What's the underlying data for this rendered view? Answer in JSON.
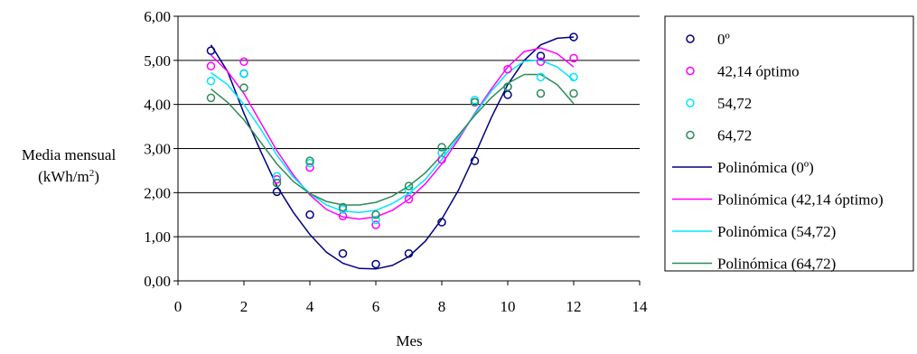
{
  "chart_data": {
    "type": "scatter",
    "title": "",
    "xlabel": "Mes",
    "ylabel_line1": "Media mensual",
    "ylabel_line2_pre": "(kWh/m",
    "ylabel_line2_sup": "2",
    "ylabel_line2_post": ")",
    "xlim": [
      0,
      14
    ],
    "ylim": [
      0,
      6
    ],
    "x_ticks": [
      "0",
      "2",
      "4",
      "6",
      "8",
      "10",
      "12",
      "14"
    ],
    "y_ticks": [
      "0,00",
      "1,00",
      "2,00",
      "3,00",
      "4,00",
      "5,00",
      "6,00"
    ],
    "grid": "horizontal",
    "legend_position": "right",
    "x": [
      1,
      2,
      3,
      4,
      5,
      6,
      7,
      8,
      9,
      10,
      11,
      12
    ],
    "series": [
      {
        "name": "0º",
        "color": "#000080",
        "values": [
          5.22,
          4.7,
          2.02,
          1.5,
          0.62,
          0.38,
          0.62,
          1.33,
          2.72,
          4.22,
          5.1,
          5.53
        ]
      },
      {
        "name": "42,14 óptimo",
        "color": "#ff00ff",
        "values": [
          4.87,
          4.97,
          2.3,
          2.57,
          1.47,
          1.27,
          1.85,
          2.75,
          4.05,
          4.8,
          4.97,
          5.05
        ]
      },
      {
        "name": "54,72",
        "color": "#00e5ff",
        "values": [
          4.53,
          4.7,
          2.37,
          2.67,
          1.62,
          1.38,
          2.05,
          2.9,
          4.1,
          4.4,
          4.62,
          4.62
        ]
      },
      {
        "name": "64,72",
        "color": "#2e8b57",
        "values": [
          4.15,
          4.38,
          2.22,
          2.72,
          1.67,
          1.5,
          2.15,
          3.03,
          4.05,
          4.4,
          4.25,
          4.25
        ]
      }
    ],
    "trendlines": [
      {
        "name": "Polinómica (0º)",
        "color": "#000080",
        "x": [
          1,
          1.5,
          2,
          2.5,
          3,
          3.5,
          4,
          4.5,
          5,
          5.5,
          6,
          6.5,
          7,
          7.5,
          8,
          8.5,
          9,
          9.5,
          10,
          10.5,
          11,
          11.5,
          12
        ],
        "values": [
          5.35,
          4.75,
          3.8,
          2.95,
          2.15,
          1.55,
          1.05,
          0.65,
          0.4,
          0.28,
          0.27,
          0.35,
          0.55,
          0.9,
          1.4,
          2.05,
          2.85,
          3.7,
          4.45,
          5.0,
          5.35,
          5.5,
          5.53
        ]
      },
      {
        "name": "Polinómica (42,14 óptimo)",
        "color": "#ff00ff",
        "x": [
          1,
          1.5,
          2,
          2.5,
          3,
          3.5,
          4,
          4.5,
          5,
          5.5,
          6,
          6.5,
          7,
          7.5,
          8,
          8.5,
          9,
          9.5,
          10,
          10.5,
          11,
          11.5,
          12
        ],
        "values": [
          5.12,
          4.75,
          4.25,
          3.6,
          2.95,
          2.4,
          1.95,
          1.62,
          1.45,
          1.4,
          1.45,
          1.6,
          1.85,
          2.2,
          2.65,
          3.2,
          3.8,
          4.35,
          4.85,
          5.2,
          5.28,
          5.15,
          4.85
        ]
      },
      {
        "name": "Polinómica (54,72)",
        "color": "#00e5ff",
        "x": [
          1,
          1.5,
          2,
          2.5,
          3,
          3.5,
          4,
          4.5,
          5,
          5.5,
          6,
          6.5,
          7,
          7.5,
          8,
          8.5,
          9,
          9.5,
          10,
          10.5,
          11,
          11.5,
          12
        ],
        "values": [
          4.72,
          4.45,
          4.0,
          3.45,
          2.85,
          2.35,
          1.98,
          1.72,
          1.58,
          1.55,
          1.6,
          1.75,
          1.98,
          2.3,
          2.75,
          3.25,
          3.78,
          4.3,
          4.72,
          4.98,
          5.0,
          4.85,
          4.55
        ]
      },
      {
        "name": "Polinómica (64,72)",
        "color": "#2e8b57",
        "x": [
          1,
          1.5,
          2,
          2.5,
          3,
          3.5,
          4,
          4.5,
          5,
          5.5,
          6,
          6.5,
          7,
          7.5,
          8,
          8.5,
          9,
          9.5,
          10,
          10.5,
          11,
          11.5,
          12
        ],
        "values": [
          4.35,
          4.05,
          3.65,
          3.15,
          2.65,
          2.25,
          1.98,
          1.8,
          1.72,
          1.72,
          1.78,
          1.92,
          2.15,
          2.45,
          2.85,
          3.3,
          3.75,
          4.15,
          4.48,
          4.68,
          4.68,
          4.45,
          4.02
        ]
      }
    ]
  }
}
